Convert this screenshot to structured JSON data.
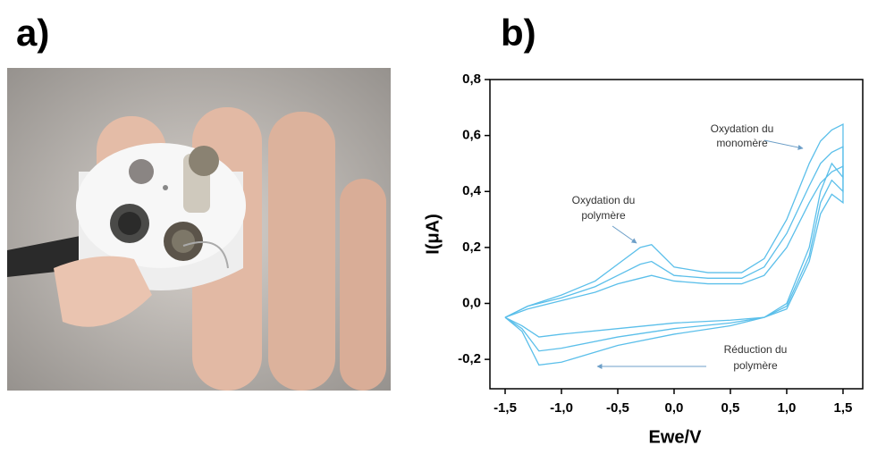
{
  "panel_labels": [
    "a)",
    "b)"
  ],
  "chart_data": {
    "type": "line",
    "x_label": "Ewe/V",
    "y_label": "I(μA)",
    "x": [
      -1.5,
      -1.3,
      -1.0,
      -0.7,
      -0.5,
      -0.3,
      -0.2,
      0,
      0.3,
      0.6,
      0.8,
      1.0,
      1.2,
      1.3,
      1.4,
      1.5,
      1.5,
      1.4,
      1.3,
      1.2,
      1.0,
      0.8,
      0.5,
      0,
      -0.5,
      -1.0,
      -1.2,
      -1.35,
      -1.5
    ],
    "series": [
      {
        "color": "#5bbfea",
        "values": [
          -0.05,
          -0.01,
          0.03,
          0.08,
          0.14,
          0.2,
          0.21,
          0.13,
          0.11,
          0.11,
          0.16,
          0.3,
          0.5,
          0.58,
          0.62,
          0.64,
          0.45,
          0.5,
          0.4,
          0.2,
          0.0,
          -0.05,
          -0.08,
          -0.11,
          -0.15,
          -0.21,
          -0.22,
          -0.1,
          -0.05
        ]
      },
      {
        "color": "#5bbfea",
        "values": [
          -0.05,
          -0.01,
          0.02,
          0.06,
          0.1,
          0.14,
          0.15,
          0.1,
          0.09,
          0.09,
          0.13,
          0.25,
          0.42,
          0.5,
          0.54,
          0.56,
          0.4,
          0.44,
          0.36,
          0.17,
          -0.01,
          -0.05,
          -0.07,
          -0.09,
          -0.12,
          -0.16,
          -0.17,
          -0.09,
          -0.05
        ]
      },
      {
        "color": "#5bbfea",
        "values": [
          -0.05,
          -0.02,
          0.01,
          0.04,
          0.07,
          0.09,
          0.1,
          0.08,
          0.07,
          0.07,
          0.1,
          0.2,
          0.36,
          0.43,
          0.47,
          0.49,
          0.36,
          0.39,
          0.32,
          0.15,
          -0.02,
          -0.05,
          -0.06,
          -0.07,
          -0.09,
          -0.11,
          -0.12,
          -0.08,
          -0.05
        ]
      }
    ],
    "xlim": [
      -1.635,
      1.675
    ],
    "ylim": [
      -0.305,
      0.8
    ],
    "xticks": [
      {
        "value": -1.5,
        "label": "-1,5"
      },
      {
        "value": -1.0,
        "label": "-1,0"
      },
      {
        "value": -0.5,
        "label": "-0,5"
      },
      {
        "value": 0,
        "label": "0,0"
      },
      {
        "value": 0.5,
        "label": "0,5"
      },
      {
        "value": 1.0,
        "label": "1,0"
      },
      {
        "value": 1.5,
        "label": "1,5"
      }
    ],
    "yticks": [
      {
        "value": -0.2,
        "label": "-0,2"
      },
      {
        "value": 0,
        "label": "0,0"
      },
      {
        "value": 0.2,
        "label": "0,2"
      },
      {
        "value": 0.4,
        "label": "0,4"
      },
      {
        "value": 0.6,
        "label": "0,6"
      },
      {
        "value": 0.8,
        "label": "0,8"
      }
    ],
    "annotations": [
      {
        "lines": [
          "Oxydation du",
          "monomère"
        ]
      },
      {
        "lines": [
          "Oxydation du",
          "polymère"
        ]
      },
      {
        "lines": [
          "Réduction du",
          "polymère"
        ]
      }
    ]
  }
}
